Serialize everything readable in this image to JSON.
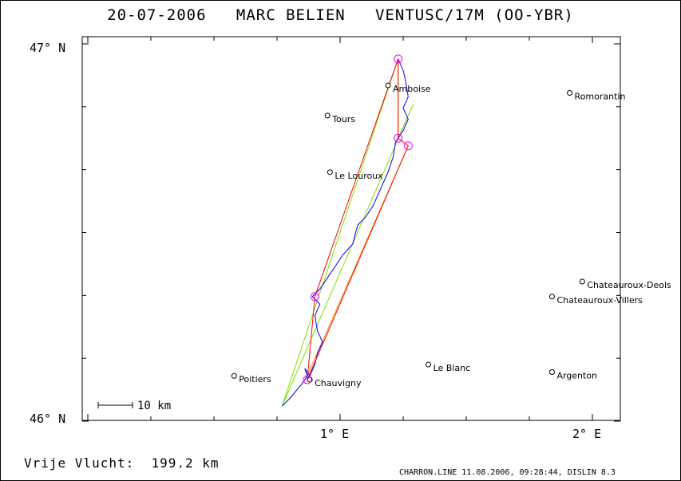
{
  "title": "20-07-2006   MARC BELIEN   VENTUSC/17M (OO-YBR)",
  "axes": {
    "lat_top": "47° N",
    "lat_bottom": "46° N",
    "lon_1": "1° E",
    "lon_2": "2° E"
  },
  "scale": {
    "label": "10 km"
  },
  "footer": {
    "distance": "Vrije Vlucht:  199.2 km",
    "info": "CHARRON.LINE 11.08.2006, 09:28:44, DISLIN 8.3"
  },
  "colors": {
    "track": "#0000ff",
    "optimized_route": "#ff0000",
    "alt_route": "#80e000",
    "turnpoint": "#ff00ff",
    "orange_route": "#ff9900"
  },
  "cities": [
    {
      "name": "Amboise",
      "lon": 1.19,
      "lat": 46.89
    },
    {
      "name": "Tours",
      "lon": 0.95,
      "lat": 46.81
    },
    {
      "name": "Romorantin",
      "lon": 1.91,
      "lat": 46.87
    },
    {
      "name": "Le Louroux",
      "lon": 0.96,
      "lat": 46.66
    },
    {
      "name": "Chateauroux-Deols",
      "lon": 1.96,
      "lat": 46.37
    },
    {
      "name": "Chateauroux-Villers",
      "lon": 1.84,
      "lat": 46.33
    },
    {
      "name": "Le Blanc",
      "lon": 1.35,
      "lat": 46.15
    },
    {
      "name": "Argenton",
      "lon": 1.84,
      "lat": 46.13
    },
    {
      "name": "Poitiers",
      "lon": 0.58,
      "lat": 46.12
    },
    {
      "name": "Chauvigny",
      "lon": 0.88,
      "lat": 46.11
    }
  ],
  "turnpoints": [
    {
      "lon": 1.23,
      "lat": 46.96
    },
    {
      "lon": 1.23,
      "lat": 46.75
    },
    {
      "lon": 1.27,
      "lat": 46.73
    },
    {
      "lon": 0.9,
      "lat": 46.33
    },
    {
      "lon": 0.87,
      "lat": 46.11
    }
  ],
  "track": [
    [
      0.77,
      46.04
    ],
    [
      0.8,
      46.06
    ],
    [
      0.85,
      46.1
    ],
    [
      0.87,
      46.12
    ],
    [
      0.86,
      46.14
    ],
    [
      0.88,
      46.12
    ],
    [
      0.9,
      46.15
    ],
    [
      0.91,
      46.18
    ],
    [
      0.93,
      46.21
    ],
    [
      0.91,
      46.24
    ],
    [
      0.9,
      46.28
    ],
    [
      0.92,
      46.31
    ],
    [
      0.89,
      46.33
    ],
    [
      0.92,
      46.35
    ],
    [
      0.95,
      46.38
    ],
    [
      0.98,
      46.41
    ],
    [
      1.01,
      46.44
    ],
    [
      1.05,
      46.47
    ],
    [
      1.07,
      46.52
    ],
    [
      1.1,
      46.54
    ],
    [
      1.13,
      46.57
    ],
    [
      1.15,
      46.6
    ],
    [
      1.17,
      46.63
    ],
    [
      1.19,
      46.66
    ],
    [
      1.21,
      46.7
    ],
    [
      1.22,
      46.74
    ],
    [
      1.25,
      46.77
    ],
    [
      1.27,
      46.8
    ],
    [
      1.25,
      46.83
    ],
    [
      1.27,
      46.86
    ],
    [
      1.26,
      46.9
    ],
    [
      1.25,
      46.93
    ],
    [
      1.23,
      46.96
    ]
  ],
  "red_route": [
    [
      0.87,
      46.11
    ],
    [
      0.9,
      46.33
    ],
    [
      1.23,
      46.96
    ],
    [
      1.23,
      46.75
    ],
    [
      1.27,
      46.73
    ],
    [
      0.87,
      46.11
    ]
  ],
  "green_route": [
    [
      0.77,
      46.04
    ],
    [
      1.23,
      46.96
    ],
    [
      1.23,
      46.75
    ],
    [
      1.29,
      46.84
    ],
    [
      0.77,
      46.04
    ]
  ],
  "orange_route": [
    [
      0.87,
      46.12
    ],
    [
      1.27,
      46.73
    ]
  ]
}
